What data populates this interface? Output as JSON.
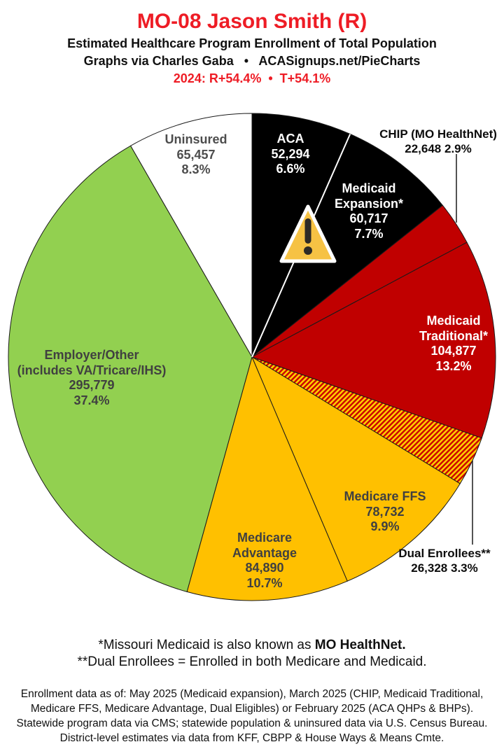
{
  "header": {
    "title": "MO-08 Jason Smith (R)",
    "subtitle": "Estimated Healthcare Program Enrollment of Total Population",
    "attribution": "Graphs via Charles Gaba   •   ACASignups.net/PieCharts",
    "election_margin": "2024: R+54.4%  •  T+54.1%"
  },
  "colors": {
    "header_red": "#ee1c25",
    "pie_black": "#000000",
    "pie_red": "#c00000",
    "pie_gold": "#ffc000",
    "pie_green": "#92d050",
    "pie_white": "#ffffff",
    "hatch_yellow": "#ffd500",
    "hatch_red": "#cc0000",
    "slice_outline": "#1a1a1a",
    "slice_text_dark": "#404040",
    "slice_text_light": "#ffffff",
    "warning_fill": "#f6c244",
    "warning_glyph": "#2d2a26"
  },
  "chart_data": {
    "type": "pie",
    "title": "Estimated Healthcare Program Enrollment of Total Population",
    "direction": "clockwise",
    "start_angle": "12 o'clock",
    "slices": [
      {
        "id": "aca",
        "name": "ACA",
        "value": 52294,
        "value_label": "52,294",
        "pct": 6.6,
        "pct_label": "6.6%",
        "color": "#000000"
      },
      {
        "id": "medicaid-expansion",
        "name": "Medicaid Expansion*",
        "value": 60717,
        "value_label": "60,717",
        "pct": 7.7,
        "pct_label": "7.7%",
        "color": "#000000"
      },
      {
        "id": "chip",
        "name": "CHIP (MO HealthNet)",
        "value": 22648,
        "value_label": "22,648",
        "pct": 2.9,
        "pct_label": "2.9%",
        "color": "#c00000"
      },
      {
        "id": "medicaid-traditional",
        "name": "Medicaid Traditional*",
        "value": 104877,
        "value_label": "104,877",
        "pct": 13.2,
        "pct_label": "13.2%",
        "color": "#c00000"
      },
      {
        "id": "dual-enrollees",
        "name": "Dual Enrollees**",
        "value": 26328,
        "value_label": "26,328",
        "pct": 3.3,
        "pct_label": "3.3%",
        "color": "hatch"
      },
      {
        "id": "medicare-ffs",
        "name": "Medicare FFS",
        "value": 78732,
        "value_label": "78,732",
        "pct": 9.9,
        "pct_label": "9.9%",
        "color": "#ffc000"
      },
      {
        "id": "medicare-advantage",
        "name": "Medicare Advantage",
        "value": 84890,
        "value_label": "84,890",
        "pct": 10.7,
        "pct_label": "10.7%",
        "color": "#ffc000"
      },
      {
        "id": "employer-other",
        "name": "Employer/Other (includes VA/Tricare/IHS)",
        "value": 295779,
        "value_label": "295,779",
        "pct": 37.4,
        "pct_label": "37.4%",
        "color": "#92d050"
      },
      {
        "id": "uninsured",
        "name": "Uninsured",
        "value": 65457,
        "value_label": "65,457",
        "pct": 8.3,
        "pct_label": "8.3%",
        "color": "#ffffff"
      }
    ],
    "labels": {
      "uninsured": [
        "Uninsured",
        "65,457",
        "8.3%"
      ],
      "aca": [
        "ACA",
        "52,294",
        "6.6%"
      ],
      "medicaid_expansion": [
        "Medicaid",
        "Expansion*",
        "60,717",
        "7.7%"
      ],
      "chip": [
        "CHIP (MO HealthNet)",
        "22,648 2.9%"
      ],
      "medicaid_traditional": [
        "Medicaid",
        "Traditional*",
        "104,877",
        "13.2%"
      ],
      "dual_enrollees": [
        "Dual Enrollees**",
        "26,328 3.3%"
      ],
      "medicare_ffs": [
        "Medicare FFS",
        "78,732",
        "9.9%"
      ],
      "medicare_advantage": [
        "Medicare",
        "Advantage",
        "84,890",
        "10.7%"
      ],
      "employer_other": [
        "Employer/Other",
        "(includes VA/Tricare/IHS)",
        "295,779",
        "37.4%"
      ]
    }
  },
  "footnotes": {
    "medicaid_note_prefix": "*Missouri Medicaid is also known as ",
    "medicaid_note_bold": "MO HealthNet.",
    "dual_note": "**Dual Enrollees = Enrolled in both Medicare and Medicaid.",
    "sources": [
      "Enrollment data as of: May 2025 (Medicaid expansion), March 2025 (CHIP, Medicaid Traditional,",
      "Medicare FFS, Medicare Advantage, Dual Eligibles) or February 2025 (ACA QHPs & BHPs).",
      "Statewide program data via CMS; statewide population & uninsured data via U.S. Census Bureau.",
      "District-level estimates via data from KFF, CBPP & House Ways & Means Cmte."
    ]
  }
}
